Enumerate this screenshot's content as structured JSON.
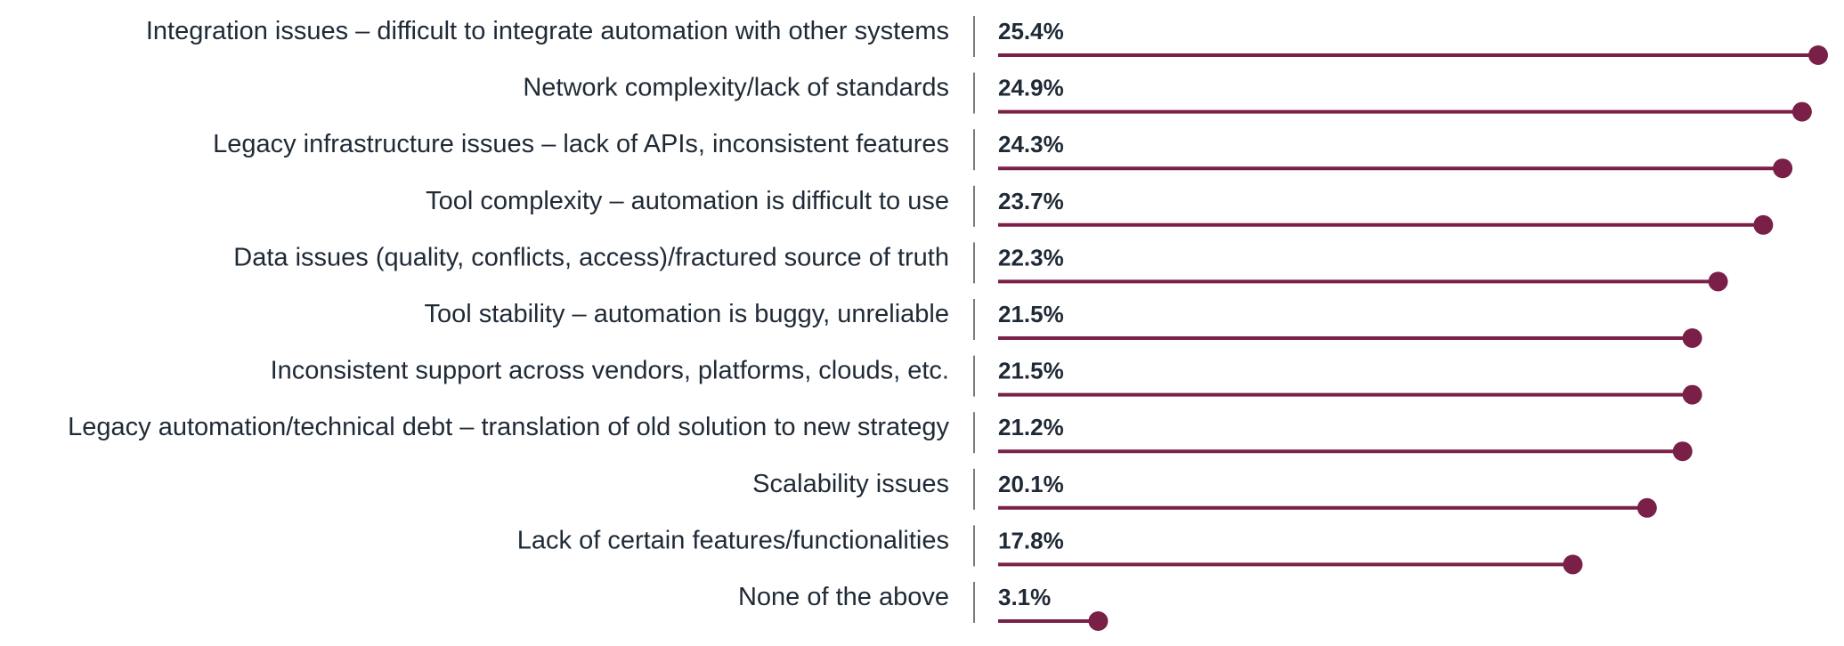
{
  "chart_data": {
    "type": "bar",
    "style": "lollipop",
    "orientation": "horizontal",
    "categories": [
      "Integration issues – difficult to integrate automation with other systems",
      "Network complexity/lack of standards",
      "Legacy infrastructure issues – lack of APIs, inconsistent features",
      "Tool complexity – automation is difficult to use",
      "Data issues (quality, conflicts, access)/fractured source of truth",
      "Tool stability – automation is buggy, unreliable",
      "Inconsistent support across vendors, platforms, clouds, etc.",
      "Legacy automation/technical debt – translation of old solution to new strategy",
      "Scalability issues",
      "Lack of certain features/functionalities",
      "None of the above"
    ],
    "values": [
      25.4,
      24.9,
      24.3,
      23.7,
      22.3,
      21.5,
      21.5,
      21.2,
      20.1,
      17.8,
      3.1
    ],
    "value_labels": [
      "25.4%",
      "24.9%",
      "24.3%",
      "23.7%",
      "22.3%",
      "21.5%",
      "21.5%",
      "21.2%",
      "20.1%",
      "17.8%",
      "3.1%"
    ],
    "unit": "%",
    "xlim": [
      0,
      25.4
    ],
    "grid": false,
    "legend": false,
    "colors": {
      "stem": "#7a2048",
      "dot": "#7a2048",
      "label": "#1f2a36",
      "divider": "#7a7a7a"
    }
  }
}
